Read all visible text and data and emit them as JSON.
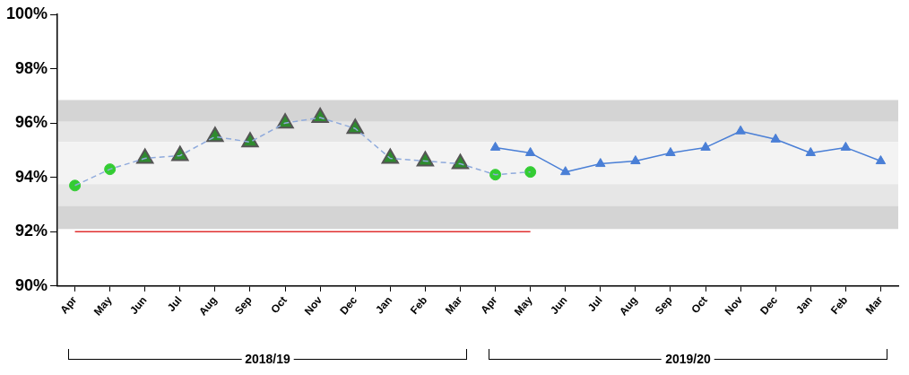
{
  "chart_data": {
    "type": "line",
    "categories": [
      "Apr",
      "May",
      "Jun",
      "Jul",
      "Aug",
      "Sep",
      "Oct",
      "Nov",
      "Dec",
      "Jan",
      "Feb",
      "Mar",
      "Apr",
      "May",
      "Jun",
      "Jul",
      "Aug",
      "Sep",
      "Oct",
      "Nov",
      "Dec",
      "Jan",
      "Feb",
      "Mar"
    ],
    "series": [
      {
        "color": "#8faadc",
        "line_style": "dashed",
        "marker": "none",
        "values": [
          93.7,
          94.3,
          94.7,
          94.8,
          95.5,
          95.3,
          96.0,
          96.2,
          95.8,
          94.7,
          94.6,
          94.5,
          94.1,
          94.2,
          null,
          null,
          null,
          null,
          null,
          null,
          null,
          null,
          null,
          null
        ]
      },
      {
        "type": "scatter",
        "color": "#33cc33",
        "marker": "circle",
        "values": [
          93.7,
          94.3,
          null,
          null,
          null,
          null,
          null,
          null,
          null,
          null,
          null,
          null,
          94.1,
          94.2,
          null,
          null,
          null,
          null,
          null,
          null,
          null,
          null,
          null,
          null
        ]
      },
      {
        "type": "scatter",
        "color": "#2e8b2e",
        "marker": "triangle",
        "values": [
          null,
          null,
          94.7,
          94.8,
          95.5,
          95.3,
          96.0,
          96.2,
          95.8,
          94.7,
          94.6,
          94.5,
          null,
          null,
          null,
          null,
          null,
          null,
          null,
          null,
          null,
          null,
          null,
          null
        ]
      },
      {
        "color": "#4a7fd6",
        "line_style": "solid",
        "marker": "triangle",
        "values": [
          null,
          null,
          null,
          null,
          null,
          null,
          null,
          null,
          null,
          null,
          null,
          null,
          95.1,
          94.9,
          94.2,
          94.5,
          94.6,
          94.9,
          95.1,
          95.7,
          95.4,
          94.9,
          95.1,
          94.6
        ]
      },
      {
        "color": "#e03030",
        "line_style": "solid",
        "marker": "none",
        "values": [
          92,
          92,
          92,
          92,
          92,
          92,
          92,
          92,
          92,
          92,
          92,
          92,
          92,
          92,
          null,
          null,
          null,
          null,
          null,
          null,
          null,
          null,
          null,
          null
        ]
      }
    ],
    "ylim": [
      90,
      100
    ],
    "yticks": [
      {
        "value": 90,
        "label": "90%"
      },
      {
        "value": 92,
        "label": "92%"
      },
      {
        "value": 94,
        "label": "94%"
      },
      {
        "value": 96,
        "label": "96%"
      },
      {
        "value": 98,
        "label": "98%"
      },
      {
        "value": 100,
        "label": "100%"
      }
    ],
    "bands": [
      {
        "axis": "y",
        "from": 96.05,
        "to": 96.85,
        "color": "#d4d4d4"
      },
      {
        "axis": "y",
        "from": 95.3,
        "to": 96.05,
        "color": "#e6e6e6"
      },
      {
        "axis": "y",
        "from": 93.75,
        "to": 95.3,
        "color": "#f3f3f3"
      },
      {
        "axis": "y",
        "from": 92.95,
        "to": 93.75,
        "color": "#e6e6e6"
      },
      {
        "axis": "y",
        "from": 92.1,
        "to": 92.95,
        "color": "#d4d4d4"
      }
    ],
    "annotations": [
      "2018/19",
      "2019/20"
    ],
    "grid": false,
    "legend": false
  }
}
